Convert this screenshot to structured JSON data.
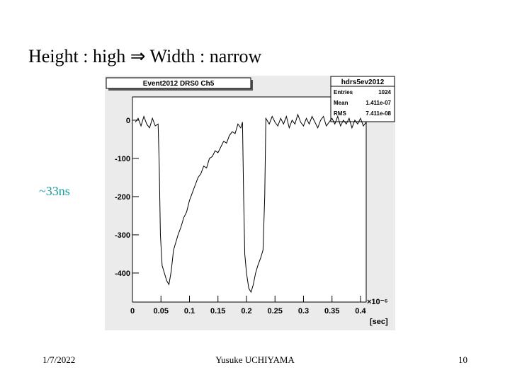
{
  "slide": {
    "title": "Height : high ⇒ Width : narrow",
    "annotation": "~33ns",
    "date": "1/7/2022",
    "author": "Yusuke UCHIYAMA",
    "page": "10"
  },
  "chart_data": {
    "type": "line",
    "title": "Event2012 DRS0 Ch5",
    "stats": {
      "name": "hdrs5ev2012",
      "rows": [
        [
          "Entries",
          "1024"
        ],
        [
          "Mean",
          "1.411e-07"
        ],
        [
          "RMS",
          "7.411e-08"
        ]
      ]
    },
    "x_label": "[sec]",
    "x_multiplier": "×10⁻⁶",
    "x": [
      0.005,
      0.01,
      0.015,
      0.02,
      0.025,
      0.03,
      0.035,
      0.04,
      0.045,
      0.047,
      0.049,
      0.052,
      0.056,
      0.06,
      0.064,
      0.068,
      0.072,
      0.076,
      0.08,
      0.085,
      0.09,
      0.095,
      0.1,
      0.105,
      0.11,
      0.115,
      0.12,
      0.125,
      0.13,
      0.135,
      0.14,
      0.145,
      0.15,
      0.155,
      0.16,
      0.165,
      0.17,
      0.175,
      0.18,
      0.185,
      0.19,
      0.193,
      0.195,
      0.197,
      0.2,
      0.204,
      0.208,
      0.212,
      0.216,
      0.22,
      0.225,
      0.229,
      0.232,
      0.234,
      0.24,
      0.245,
      0.25,
      0.255,
      0.26,
      0.265,
      0.27,
      0.275,
      0.28,
      0.285,
      0.29,
      0.295,
      0.3,
      0.305,
      0.31,
      0.315,
      0.32,
      0.325,
      0.33,
      0.335,
      0.34,
      0.345,
      0.35,
      0.355,
      0.36,
      0.365,
      0.37,
      0.375,
      0.38,
      0.385,
      0.39,
      0.395,
      0.4,
      0.405,
      0.41
    ],
    "series": [
      {
        "color": "#000000",
        "values": [
          -5,
          5,
          -15,
          10,
          -10,
          -20,
          5,
          -15,
          -10,
          -120,
          -300,
          -380,
          -400,
          -420,
          -430,
          -395,
          -340,
          -320,
          -300,
          -280,
          -255,
          -240,
          -210,
          -190,
          -170,
          -150,
          -140,
          -120,
          -125,
          -100,
          -95,
          -80,
          -85,
          -70,
          -55,
          -60,
          -40,
          -30,
          -35,
          -10,
          -20,
          -5,
          -200,
          -350,
          -400,
          -440,
          -450,
          -430,
          -400,
          -380,
          -360,
          -340,
          -200,
          5,
          -10,
          10,
          -5,
          -15,
          5,
          -10,
          10,
          -20,
          0,
          -10,
          15,
          -5,
          -15,
          5,
          -10,
          10,
          -5,
          -20,
          0,
          10,
          -15,
          -5,
          5,
          -10,
          10,
          -15,
          0,
          -10,
          5,
          -20,
          0,
          -10,
          5,
          -15,
          -5
        ]
      }
    ],
    "xlim": [
      0,
      0.41
    ],
    "ylim": [
      -476,
      61
    ],
    "xticks": [
      0,
      0.05,
      0.1,
      0.15,
      0.2,
      0.25,
      0.3,
      0.35,
      0.4
    ],
    "yticks": [
      0,
      -100,
      -200,
      -300,
      -400
    ]
  }
}
